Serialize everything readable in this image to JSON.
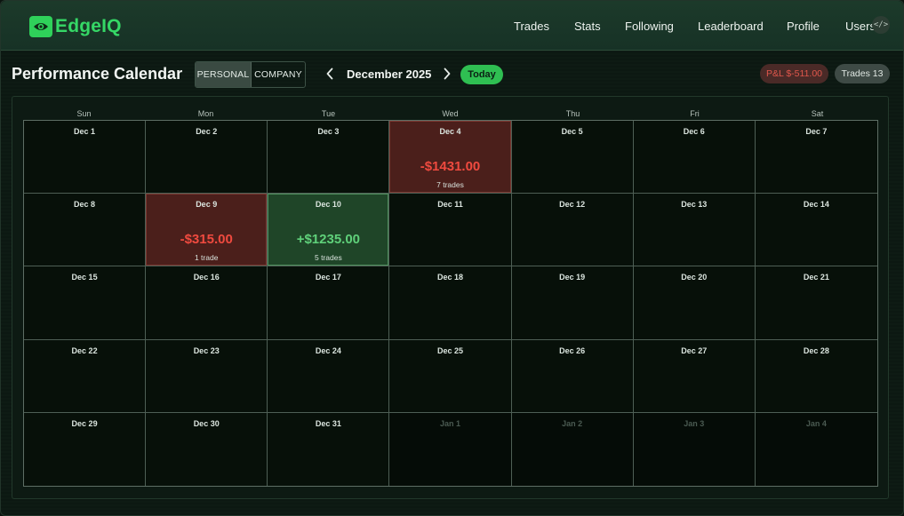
{
  "app": {
    "name": "EdgeIQ",
    "brand_color": "#35d866"
  },
  "nav": {
    "items": [
      {
        "label": "Trades"
      },
      {
        "label": "Stats"
      },
      {
        "label": "Following"
      },
      {
        "label": "Leaderboard"
      },
      {
        "label": "Profile"
      },
      {
        "label": "Users"
      }
    ],
    "dev_icon": "code-icon"
  },
  "header": {
    "title": "Performance Calendar",
    "toggle": {
      "options": [
        "PERSONAL",
        "COMPANY"
      ],
      "selected": "PERSONAL"
    },
    "month": "December 2025",
    "today_label": "Today",
    "pnl_label": "P&L $-511.00",
    "trades_label": "Trades 13"
  },
  "calendar": {
    "weekdays": [
      "Sun",
      "Mon",
      "Tue",
      "Wed",
      "Thu",
      "Fri",
      "Sat"
    ],
    "days": [
      {
        "date": "Dec 1"
      },
      {
        "date": "Dec 2"
      },
      {
        "date": "Dec 3"
      },
      {
        "date": "Dec 4",
        "status": "loss",
        "pnl": "-$1431.00",
        "trades": "7 trades"
      },
      {
        "date": "Dec 5"
      },
      {
        "date": "Dec 6"
      },
      {
        "date": "Dec 7"
      },
      {
        "date": "Dec 8"
      },
      {
        "date": "Dec 9",
        "status": "loss",
        "pnl": "-$315.00",
        "trades": "1 trade"
      },
      {
        "date": "Dec 10",
        "status": "win",
        "pnl": "+$1235.00",
        "trades": "5 trades"
      },
      {
        "date": "Dec 11"
      },
      {
        "date": "Dec 12"
      },
      {
        "date": "Dec 13"
      },
      {
        "date": "Dec 14"
      },
      {
        "date": "Dec 15"
      },
      {
        "date": "Dec 16"
      },
      {
        "date": "Dec 17"
      },
      {
        "date": "Dec 18"
      },
      {
        "date": "Dec 19"
      },
      {
        "date": "Dec 20"
      },
      {
        "date": "Dec 21"
      },
      {
        "date": "Dec 22"
      },
      {
        "date": "Dec 23"
      },
      {
        "date": "Dec 24"
      },
      {
        "date": "Dec 25"
      },
      {
        "date": "Dec 26"
      },
      {
        "date": "Dec 27"
      },
      {
        "date": "Dec 28"
      },
      {
        "date": "Dec 29"
      },
      {
        "date": "Dec 30"
      },
      {
        "date": "Dec 31"
      },
      {
        "date": "Jan 1",
        "status": "next"
      },
      {
        "date": "Jan 2",
        "status": "next"
      },
      {
        "date": "Jan 3",
        "status": "next"
      },
      {
        "date": "Jan 4",
        "status": "next"
      }
    ]
  },
  "colors": {
    "loss": "#ef4a3f",
    "win": "#5fd07a",
    "accent": "#2fbf52"
  }
}
